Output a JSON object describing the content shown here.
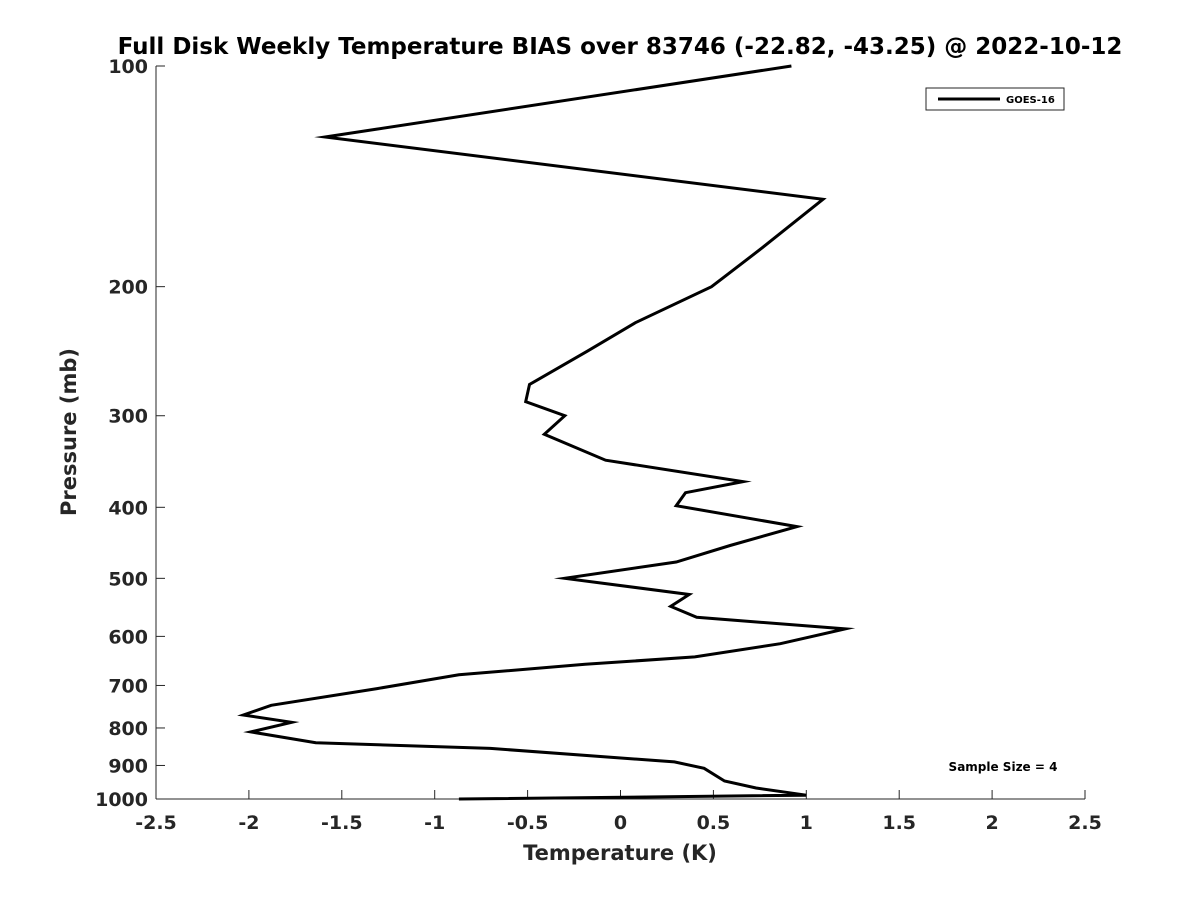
{
  "chart_data": {
    "type": "line",
    "title": "Full Disk Weekly Temperature BIAS over 83746 (-22.82, -43.25) @ 2022-10-12",
    "xlabel": "Temperature (K)",
    "ylabel": "Pressure (mb)",
    "xlim": [
      -2.5,
      2.5
    ],
    "ylim": [
      100,
      1000
    ],
    "y_scale": "log",
    "y_reversed": true,
    "x_ticks": [
      -2.5,
      -2,
      -1.5,
      -1,
      -0.5,
      0,
      0.5,
      1,
      1.5,
      2,
      2.5
    ],
    "x_tick_labels": [
      "-2.5",
      "-2",
      "-1.5",
      "-1",
      "-0.5",
      "0",
      "0.5",
      "1",
      "1.5",
      "2",
      "2.5"
    ],
    "y_ticks": [
      100,
      200,
      300,
      400,
      500,
      600,
      700,
      800,
      900,
      1000
    ],
    "y_tick_labels": [
      "100",
      "200",
      "300",
      "400",
      "500",
      "600",
      "700",
      "800",
      "900",
      "1000"
    ],
    "grid": false,
    "legend_position": "top-right",
    "series": [
      {
        "name": "GOES-16",
        "color": "#000000",
        "points": [
          [
            0.92,
            100
          ],
          [
            -1.59,
            125
          ],
          [
            1.09,
            152
          ],
          [
            0.75,
            178
          ],
          [
            0.57,
            193
          ],
          [
            0.49,
            200
          ],
          [
            0.08,
            224
          ],
          [
            -0.18,
            245
          ],
          [
            -0.49,
            272
          ],
          [
            -0.51,
            287
          ],
          [
            -0.3,
            300
          ],
          [
            -0.41,
            318
          ],
          [
            -0.08,
            345
          ],
          [
            0.66,
            369
          ],
          [
            0.35,
            382
          ],
          [
            0.3,
            398
          ],
          [
            0.95,
            425
          ],
          [
            0.59,
            451
          ],
          [
            0.3,
            475
          ],
          [
            -0.3,
            500
          ],
          [
            0.37,
            526
          ],
          [
            0.27,
            546
          ],
          [
            0.41,
            565
          ],
          [
            1.21,
            586
          ],
          [
            0.86,
            614
          ],
          [
            0.4,
            640
          ],
          [
            -0.19,
            655
          ],
          [
            -0.87,
            677
          ],
          [
            -1.31,
            707
          ],
          [
            -1.88,
            745
          ],
          [
            -2.03,
            768
          ],
          [
            -1.77,
            786
          ],
          [
            -1.99,
            810
          ],
          [
            -1.64,
            838
          ],
          [
            -0.7,
            853
          ],
          [
            0.29,
            890
          ],
          [
            0.45,
            908
          ],
          [
            0.56,
            945
          ],
          [
            0.73,
            966
          ],
          [
            1.0,
            988
          ],
          [
            -0.87,
            1000
          ]
        ]
      }
    ],
    "annotations": [
      {
        "text": "Sample Size = 4",
        "position": "bottom-right"
      }
    ]
  }
}
